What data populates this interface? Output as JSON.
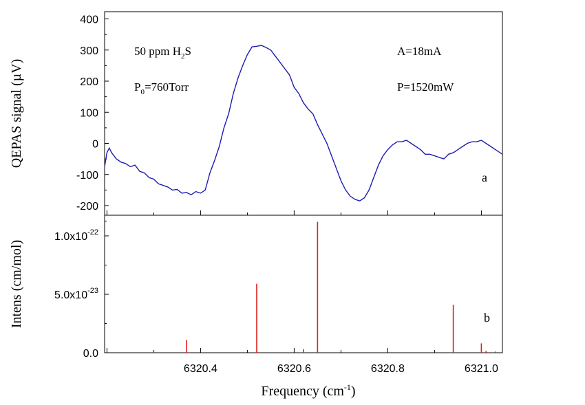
{
  "chart_data": [
    {
      "panel_label": "a",
      "type": "line",
      "ylabel": "QEPAS signal (µV)",
      "ylim": [
        -250,
        400
      ],
      "yticks": [
        -200,
        -100,
        0,
        100,
        200,
        300,
        400
      ],
      "xlim": [
        6320.195,
        6321.045
      ],
      "annotations": {
        "concentration": "50 ppm H2S",
        "pressure": "P0=760Torr",
        "current": "A=18mA",
        "power": "P=1520mW"
      },
      "series": [
        {
          "color": "#1c1cb4",
          "x": [
            6320.195,
            6320.2,
            6320.205,
            6320.21,
            6320.22,
            6320.23,
            6320.24,
            6320.25,
            6320.26,
            6320.27,
            6320.28,
            6320.29,
            6320.3,
            6320.31,
            6320.32,
            6320.33,
            6320.34,
            6320.35,
            6320.36,
            6320.37,
            6320.38,
            6320.39,
            6320.4,
            6320.41,
            6320.42,
            6320.43,
            6320.44,
            6320.45,
            6320.46,
            6320.47,
            6320.48,
            6320.49,
            6320.5,
            6320.51,
            6320.52,
            6320.53,
            6320.54,
            6320.55,
            6320.56,
            6320.57,
            6320.58,
            6320.59,
            6320.6,
            6320.61,
            6320.62,
            6320.63,
            6320.64,
            6320.65,
            6320.66,
            6320.67,
            6320.68,
            6320.69,
            6320.7,
            6320.71,
            6320.72,
            6320.73,
            6320.74,
            6320.75,
            6320.76,
            6320.77,
            6320.78,
            6320.79,
            6320.8,
            6320.81,
            6320.82,
            6320.83,
            6320.84,
            6320.85,
            6320.86,
            6320.87,
            6320.88,
            6320.89,
            6320.9,
            6320.91,
            6320.92,
            6320.93,
            6320.94,
            6320.95,
            6320.96,
            6320.97,
            6320.98,
            6320.99,
            6321.0,
            6321.01,
            6321.02,
            6321.03,
            6321.04,
            6321.045
          ],
          "y": [
            -75,
            -30,
            -15,
            -30,
            -50,
            -60,
            -65,
            -75,
            -70,
            -90,
            -95,
            -110,
            -115,
            -130,
            -135,
            -140,
            -150,
            -148,
            -160,
            -158,
            -165,
            -155,
            -160,
            -150,
            -95,
            -55,
            -10,
            50,
            95,
            160,
            210,
            250,
            285,
            310,
            312,
            315,
            308,
            300,
            280,
            260,
            240,
            220,
            180,
            160,
            130,
            110,
            95,
            60,
            30,
            0,
            -40,
            -80,
            -120,
            -150,
            -170,
            -180,
            -185,
            -175,
            -150,
            -110,
            -70,
            -40,
            -20,
            -5,
            5,
            5,
            10,
            0,
            -10,
            -20,
            -35,
            -35,
            -40,
            -45,
            -50,
            -35,
            -30,
            -20,
            -10,
            0,
            5,
            5,
            10,
            0,
            -10,
            -20,
            -30,
            -35
          ]
        }
      ]
    },
    {
      "panel_label": "b",
      "type": "bar",
      "xlabel": "Frequency (cm-1)",
      "ylabel": "Intens (cm/mol)",
      "xlim": [
        6320.195,
        6321.045
      ],
      "xticks": [
        "6320.4",
        "6320.6",
        "6320.8",
        "6321.0"
      ],
      "ylim": [
        0,
        1.15e-22
      ],
      "yticks": [
        "0.0",
        "5.0x10-23",
        "1.0x10-22"
      ],
      "series": [
        {
          "color": "#e01e1e",
          "x": [
            6320.3,
            6320.37,
            6320.52,
            6320.62,
            6320.65,
            6320.94,
            6321.0,
            6321.01,
            6321.03
          ],
          "values": [
            1e-24,
            1.1e-23,
            5.9e-23,
            3e-24,
            1.12e-22,
            4.1e-23,
            8e-24,
            1.5e-24,
            1e-24
          ]
        }
      ]
    }
  ]
}
